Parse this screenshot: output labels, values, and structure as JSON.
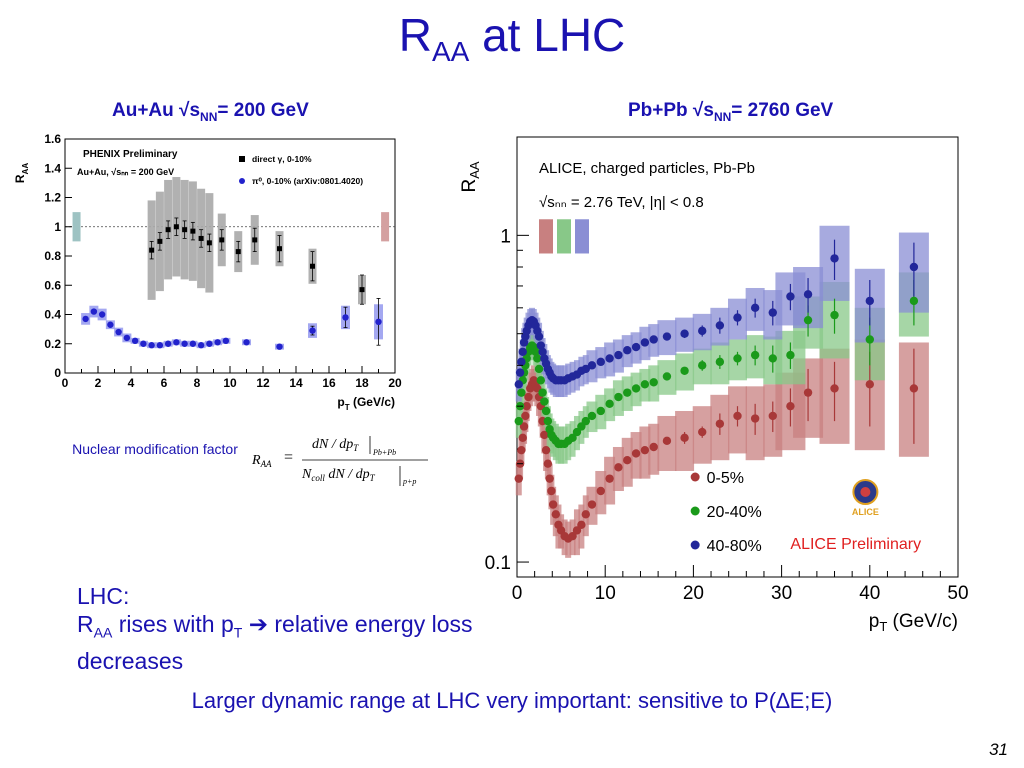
{
  "slide": {
    "title_main": "R",
    "title_sub": "AA",
    "title_rest": " at LHC",
    "left_title_a": "Au+Au √s",
    "left_title_sub": "NN",
    "left_title_b": "= 200 GeV",
    "right_title_a": "Pb+Pb √s",
    "right_title_sub": "NN",
    "right_title_b": "= 2760 GeV",
    "nmf_label": "Nuclear modification factor",
    "lhc_line1": "LHC:",
    "lhc_line2_a": "R",
    "lhc_line2_sub": "AA",
    "lhc_line2_b": " rises with p",
    "lhc_line2_sub2": "T",
    "lhc_line2_c": " ➔ relative energy loss",
    "lhc_line3": "decreases",
    "footer": "Larger dynamic range at LHC very important: sensitive to P(∆E;E)",
    "page_number": "31"
  },
  "chart_data": [
    {
      "type": "scatter",
      "title": "PHENIX Preliminary",
      "subtitle": "Au+Au, √s_NN = 200 GeV",
      "xlabel": "p_T (GeV/c)",
      "ylabel": "R_AA",
      "xlim": [
        0,
        20
      ],
      "ylim": [
        0,
        1.6
      ],
      "xticks": [
        0,
        2,
        4,
        6,
        8,
        10,
        12,
        14,
        16,
        18,
        20
      ],
      "yticks": [
        0,
        0.2,
        0.4,
        0.6,
        0.8,
        1,
        1.2,
        1.4,
        1.6
      ],
      "reference_line": 1,
      "series": [
        {
          "name": "direct γ, 0-10%",
          "color": "#000000",
          "marker": "square",
          "x": [
            5.25,
            5.75,
            6.25,
            6.75,
            7.25,
            7.75,
            8.25,
            8.75,
            9.5,
            10.5,
            11.5,
            13.0,
            15.0,
            18.0
          ],
          "y": [
            0.84,
            0.9,
            0.98,
            1.0,
            0.98,
            0.97,
            0.92,
            0.89,
            0.91,
            0.83,
            0.91,
            0.85,
            0.73,
            0.57
          ],
          "err": [
            0.06,
            0.06,
            0.06,
            0.06,
            0.06,
            0.06,
            0.06,
            0.06,
            0.07,
            0.07,
            0.08,
            0.09,
            0.1,
            0.1
          ],
          "sys": [
            0.34,
            0.34,
            0.34,
            0.34,
            0.34,
            0.34,
            0.34,
            0.34,
            0.18,
            0.14,
            0.17,
            0.12,
            0.12,
            0.1
          ]
        },
        {
          "name": "π⁰, 0-10% (arXiv:0801.4020)",
          "color": "#2222cc",
          "marker": "circle",
          "x": [
            1.25,
            1.75,
            2.25,
            2.75,
            3.25,
            3.75,
            4.25,
            4.75,
            5.25,
            5.75,
            6.25,
            6.75,
            7.25,
            7.75,
            8.25,
            8.75,
            9.25,
            9.75,
            11.0,
            13.0,
            15.0,
            17.0,
            19.0
          ],
          "y": [
            0.37,
            0.42,
            0.4,
            0.33,
            0.28,
            0.24,
            0.22,
            0.2,
            0.19,
            0.19,
            0.2,
            0.21,
            0.2,
            0.2,
            0.19,
            0.2,
            0.21,
            0.22,
            0.21,
            0.18,
            0.29,
            0.38,
            0.35
          ],
          "err": [
            0.01,
            0.01,
            0.01,
            0.01,
            0.01,
            0.01,
            0.01,
            0.01,
            0.01,
            0.01,
            0.01,
            0.01,
            0.01,
            0.01,
            0.01,
            0.01,
            0.01,
            0.01,
            0.01,
            0.01,
            0.03,
            0.07,
            0.16
          ],
          "sys": [
            0.04,
            0.04,
            0.04,
            0.03,
            0.03,
            0.03,
            0.02,
            0.02,
            0.02,
            0.02,
            0.02,
            0.02,
            0.02,
            0.02,
            0.02,
            0.02,
            0.02,
            0.02,
            0.02,
            0.02,
            0.05,
            0.08,
            0.12
          ]
        }
      ],
      "legend": [
        "direct γ, 0-10%",
        "π⁰, 0-10% (arXiv:0801.4020)"
      ],
      "legend_position": "top-right",
      "norm_boxes": [
        {
          "x": 0.7,
          "ylow": 0.9,
          "yhigh": 1.1,
          "color": "#9ec3c3"
        },
        {
          "x": 19.4,
          "ylow": 0.9,
          "yhigh": 1.1,
          "color": "#d4a0a0"
        }
      ]
    },
    {
      "type": "scatter",
      "title": "ALICE, charged particles, Pb-Pb",
      "subtitle": "√s_NN = 2.76 TeV, |η| < 0.8",
      "xlabel": "p_T (GeV/c)",
      "ylabel": "R_AA",
      "yscale": "log",
      "xlim": [
        0,
        50
      ],
      "ylim": [
        0.09,
        2.0
      ],
      "xticks": [
        0,
        10,
        20,
        30,
        40,
        50
      ],
      "yticks": [
        0.1,
        1
      ],
      "annotation": "ALICE Preliminary",
      "legend_position": "bottom-right",
      "series": [
        {
          "name": "0-5%",
          "color": "#a83838",
          "box_color": "#c88080",
          "x": [
            0.2,
            0.35,
            0.5,
            0.65,
            0.8,
            0.95,
            1.1,
            1.3,
            1.5,
            1.7,
            1.9,
            2.1,
            2.3,
            2.5,
            2.7,
            2.9,
            3.1,
            3.3,
            3.5,
            3.7,
            3.9,
            4.1,
            4.4,
            4.7,
            5.0,
            5.4,
            5.8,
            6.3,
            6.8,
            7.3,
            7.8,
            8.5,
            9.5,
            10.5,
            11.5,
            12.5,
            13.5,
            14.5,
            15.5,
            17.0,
            19.0,
            21.0,
            23.0,
            25.0,
            27.0,
            29.0,
            31.0,
            33.0,
            36.0,
            40.0,
            45.0
          ],
          "y": [
            0.18,
            0.2,
            0.22,
            0.24,
            0.26,
            0.28,
            0.3,
            0.32,
            0.34,
            0.35,
            0.36,
            0.35,
            0.34,
            0.32,
            0.3,
            0.27,
            0.245,
            0.22,
            0.2,
            0.18,
            0.165,
            0.15,
            0.14,
            0.13,
            0.125,
            0.12,
            0.118,
            0.12,
            0.125,
            0.13,
            0.14,
            0.15,
            0.165,
            0.18,
            0.195,
            0.205,
            0.215,
            0.22,
            0.225,
            0.235,
            0.24,
            0.25,
            0.265,
            0.28,
            0.275,
            0.28,
            0.3,
            0.33,
            0.34,
            0.35,
            0.34
          ],
          "err": [
            0,
            0,
            0,
            0,
            0,
            0,
            0,
            0,
            0,
            0,
            0,
            0,
            0,
            0,
            0,
            0,
            0,
            0,
            0,
            0,
            0,
            0,
            0,
            0,
            0,
            0,
            0,
            0,
            0,
            0,
            0,
            0,
            0,
            0,
            0,
            0,
            0,
            0,
            0,
            0,
            0.01,
            0.01,
            0.02,
            0.02,
            0.03,
            0.03,
            0.04,
            0.06,
            0.07,
            0.09,
            0.11
          ],
          "sys": [
            0.02,
            0.02,
            0.02,
            0.02,
            0.03,
            0.03,
            0.03,
            0.03,
            0.04,
            0.04,
            0.04,
            0.04,
            0.04,
            0.04,
            0.04,
            0.03,
            0.03,
            0.03,
            0.02,
            0.02,
            0.02,
            0.02,
            0.02,
            0.02,
            0.015,
            0.015,
            0.015,
            0.015,
            0.02,
            0.02,
            0.02,
            0.02,
            0.025,
            0.03,
            0.03,
            0.035,
            0.035,
            0.04,
            0.04,
            0.045,
            0.05,
            0.05,
            0.06,
            0.065,
            0.07,
            0.07,
            0.08,
            0.09,
            0.11,
            0.13,
            0.13
          ]
        },
        {
          "name": "20-40%",
          "color": "#1a9a1a",
          "box_color": "#88c888",
          "x": [
            0.2,
            0.35,
            0.5,
            0.65,
            0.8,
            0.95,
            1.1,
            1.3,
            1.5,
            1.7,
            1.9,
            2.1,
            2.3,
            2.5,
            2.7,
            2.9,
            3.1,
            3.3,
            3.5,
            3.7,
            3.9,
            4.1,
            4.4,
            4.7,
            5.0,
            5.4,
            5.8,
            6.3,
            6.8,
            7.3,
            7.8,
            8.5,
            9.5,
            10.5,
            11.5,
            12.5,
            13.5,
            14.5,
            15.5,
            17.0,
            19.0,
            21.0,
            23.0,
            25.0,
            27.0,
            29.0,
            31.0,
            33.0,
            36.0,
            40.0,
            45.0
          ],
          "y": [
            0.27,
            0.3,
            0.33,
            0.36,
            0.38,
            0.4,
            0.42,
            0.44,
            0.455,
            0.46,
            0.455,
            0.44,
            0.42,
            0.39,
            0.36,
            0.33,
            0.31,
            0.29,
            0.27,
            0.255,
            0.245,
            0.24,
            0.235,
            0.23,
            0.23,
            0.23,
            0.235,
            0.24,
            0.25,
            0.26,
            0.27,
            0.28,
            0.29,
            0.305,
            0.32,
            0.33,
            0.34,
            0.35,
            0.355,
            0.37,
            0.385,
            0.4,
            0.41,
            0.42,
            0.43,
            0.42,
            0.43,
            0.55,
            0.57,
            0.48,
            0.63
          ],
          "err": [
            0,
            0,
            0,
            0,
            0,
            0,
            0,
            0,
            0,
            0,
            0,
            0,
            0,
            0,
            0,
            0,
            0,
            0,
            0,
            0,
            0,
            0,
            0,
            0,
            0,
            0,
            0,
            0,
            0,
            0,
            0,
            0,
            0,
            0,
            0,
            0,
            0,
            0,
            0,
            0,
            0.01,
            0.015,
            0.02,
            0.02,
            0.03,
            0.04,
            0.04,
            0.06,
            0.07,
            0.08,
            0.1
          ],
          "sys": [
            0.03,
            0.03,
            0.03,
            0.03,
            0.04,
            0.04,
            0.04,
            0.04,
            0.04,
            0.04,
            0.04,
            0.04,
            0.04,
            0.04,
            0.04,
            0.04,
            0.03,
            0.03,
            0.03,
            0.03,
            0.03,
            0.03,
            0.03,
            0.03,
            0.03,
            0.03,
            0.03,
            0.03,
            0.03,
            0.03,
            0.03,
            0.03,
            0.035,
            0.035,
            0.04,
            0.04,
            0.04,
            0.04,
            0.045,
            0.045,
            0.05,
            0.05,
            0.06,
            0.06,
            0.065,
            0.07,
            0.08,
            0.1,
            0.15,
            0.12,
            0.14
          ]
        },
        {
          "name": "40-80%",
          "color": "#22279a",
          "box_color": "#8a8ed4",
          "x": [
            0.2,
            0.35,
            0.5,
            0.65,
            0.8,
            0.95,
            1.1,
            1.3,
            1.5,
            1.7,
            1.9,
            2.1,
            2.3,
            2.5,
            2.7,
            2.9,
            3.1,
            3.3,
            3.5,
            3.7,
            3.9,
            4.1,
            4.4,
            4.7,
            5.0,
            5.4,
            5.8,
            6.3,
            6.8,
            7.3,
            7.8,
            8.5,
            9.5,
            10.5,
            11.5,
            12.5,
            13.5,
            14.5,
            15.5,
            17.0,
            19.0,
            21.0,
            23.0,
            25.0,
            27.0,
            29.0,
            31.0,
            33.0,
            36.0,
            40.0,
            45.0
          ],
          "y": [
            0.35,
            0.38,
            0.41,
            0.44,
            0.47,
            0.49,
            0.51,
            0.53,
            0.545,
            0.55,
            0.545,
            0.53,
            0.51,
            0.49,
            0.46,
            0.44,
            0.42,
            0.405,
            0.39,
            0.38,
            0.37,
            0.365,
            0.36,
            0.36,
            0.36,
            0.36,
            0.365,
            0.37,
            0.375,
            0.385,
            0.39,
            0.4,
            0.41,
            0.42,
            0.43,
            0.445,
            0.455,
            0.47,
            0.48,
            0.49,
            0.5,
            0.51,
            0.53,
            0.56,
            0.6,
            0.58,
            0.65,
            0.66,
            0.85,
            0.63,
            0.8
          ],
          "err": [
            0,
            0,
            0,
            0,
            0,
            0,
            0,
            0,
            0,
            0,
            0,
            0,
            0,
            0,
            0,
            0,
            0,
            0,
            0,
            0,
            0,
            0,
            0,
            0,
            0,
            0,
            0,
            0,
            0,
            0,
            0,
            0,
            0,
            0,
            0,
            0,
            0,
            0,
            0,
            0,
            0.015,
            0.02,
            0.03,
            0.03,
            0.04,
            0.05,
            0.06,
            0.08,
            0.12,
            0.1,
            0.15
          ],
          "sys": [
            0.04,
            0.04,
            0.04,
            0.04,
            0.05,
            0.05,
            0.05,
            0.05,
            0.05,
            0.05,
            0.05,
            0.05,
            0.05,
            0.05,
            0.05,
            0.045,
            0.045,
            0.04,
            0.04,
            0.04,
            0.04,
            0.04,
            0.04,
            0.04,
            0.04,
            0.04,
            0.04,
            0.04,
            0.04,
            0.04,
            0.04,
            0.045,
            0.045,
            0.05,
            0.05,
            0.05,
            0.05,
            0.055,
            0.055,
            0.06,
            0.06,
            0.065,
            0.07,
            0.08,
            0.09,
            0.1,
            0.12,
            0.14,
            0.22,
            0.16,
            0.22
          ]
        }
      ],
      "legend": [
        "0-5%",
        "20-40%",
        "40-80%"
      ],
      "norm_boxes": [
        {
          "color": "#c88080",
          "ylow": 0.88,
          "yhigh": 1.12
        },
        {
          "color": "#88c888",
          "ylow": 0.88,
          "yhigh": 1.12
        },
        {
          "color": "#8a8ed4",
          "ylow": 0.88,
          "yhigh": 1.12
        }
      ]
    }
  ],
  "formula": {
    "lhs": "R",
    "lhs_sub": "AA",
    "equals": "=",
    "num": "dN / dp",
    "num_sub": "T",
    "num_eval": "Pb+Pb",
    "den_a": "N",
    "den_sub": "coll",
    "den_b": " dN / dp",
    "den_sub2": "T",
    "den_eval": "p+p"
  }
}
